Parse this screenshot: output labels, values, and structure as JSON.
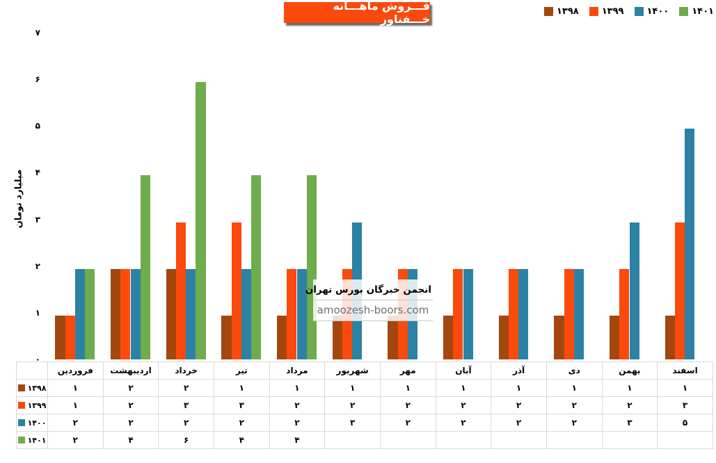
{
  "title": "فـــروش ماهـــانه خـــفناور",
  "watermark": {
    "line1": "انجمن خبرگان بورس تهران",
    "line2": "amoozesh-boors.com"
  },
  "colors": {
    "title_bg": "#FB4A0D",
    "series_1398": "#A3470F",
    "series_1399": "#FB4A0D",
    "series_1400": "#2C82A4",
    "series_1401": "#6FAC4B",
    "table_border": "#D9D9D9",
    "watermark_text": "#6E6E6E"
  },
  "chart_data": {
    "type": "bar",
    "title": "فـــروش ماهـــانه خـــفناور",
    "xlabel": "",
    "ylabel": "میلیارد تومان",
    "ylim": [
      0,
      7
    ],
    "ytick_labels": [
      "۰",
      "۱",
      "۲",
      "۳",
      "۴",
      "۵",
      "۶",
      "۷"
    ],
    "grid": false,
    "legend_position": "top-right",
    "categories": [
      "فروردین",
      "اردیبهشت",
      "خرداد",
      "تیر",
      "مرداد",
      "شهریور",
      "مهر",
      "آبان",
      "آذر",
      "دی",
      "بهمن",
      "اسفند"
    ],
    "series": [
      {
        "name": "۱۳۹۸",
        "color": "#A3470F",
        "values": [
          0.94,
          1.94,
          1.94,
          0.94,
          0.94,
          0.94,
          0.94,
          0.94,
          0.94,
          0.94,
          0.94,
          0.94
        ],
        "table_values": [
          "۱",
          "۲",
          "۲",
          "۱",
          "۱",
          "۱",
          "۱",
          "۱",
          "۱",
          "۱",
          "۱",
          "۱"
        ]
      },
      {
        "name": "۱۳۹۹",
        "color": "#FB4A0D",
        "values": [
          0.94,
          1.94,
          2.94,
          2.94,
          1.94,
          1.94,
          1.94,
          1.94,
          1.94,
          1.94,
          1.94,
          2.94
        ],
        "table_values": [
          "۱",
          "۲",
          "۳",
          "۳",
          "۲",
          "۲",
          "۲",
          "۲",
          "۲",
          "۲",
          "۲",
          "۳"
        ]
      },
      {
        "name": "۱۴۰۰",
        "color": "#2C82A4",
        "values": [
          1.94,
          1.94,
          1.94,
          1.94,
          1.94,
          2.94,
          1.94,
          1.94,
          1.94,
          1.94,
          2.94,
          4.94
        ],
        "table_values": [
          "۲",
          "۲",
          "۲",
          "۲",
          "۲",
          "۳",
          "۲",
          "۲",
          "۲",
          "۲",
          "۳",
          "۵"
        ]
      },
      {
        "name": "۱۴۰۱",
        "color": "#6FAC4B",
        "values": [
          1.94,
          3.94,
          5.94,
          3.94,
          3.94,
          null,
          null,
          null,
          null,
          null,
          null,
          null
        ],
        "table_values": [
          "۲",
          "۴",
          "۶",
          "۴",
          "۴",
          "",
          "",
          "",
          "",
          "",
          "",
          ""
        ]
      }
    ]
  }
}
